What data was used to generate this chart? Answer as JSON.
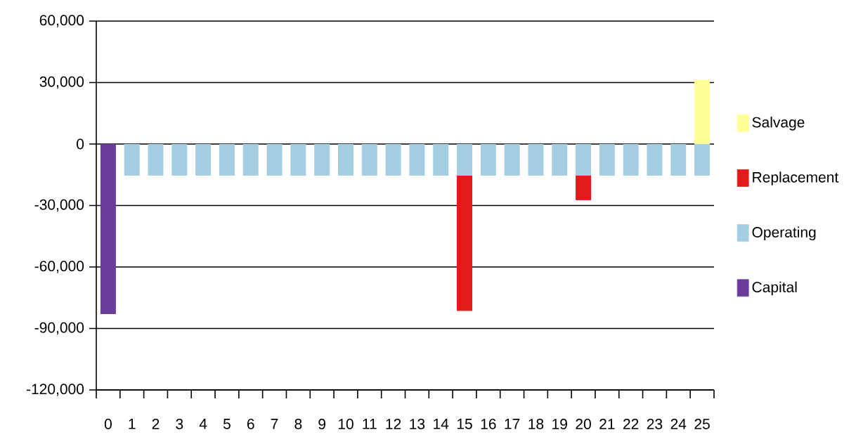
{
  "chart_data": {
    "type": "bar",
    "stacked": true,
    "categories": [
      "0",
      "1",
      "2",
      "3",
      "4",
      "5",
      "6",
      "7",
      "8",
      "9",
      "10",
      "11",
      "12",
      "13",
      "14",
      "15",
      "16",
      "17",
      "18",
      "19",
      "20",
      "21",
      "22",
      "23",
      "24",
      "25"
    ],
    "series": [
      {
        "name": "Capital",
        "color": "#6a3d9a",
        "values": [
          -83000,
          null,
          null,
          null,
          null,
          null,
          null,
          null,
          null,
          null,
          null,
          null,
          null,
          null,
          null,
          null,
          null,
          null,
          null,
          null,
          null,
          null,
          null,
          null,
          null,
          null
        ]
      },
      {
        "name": "Operating",
        "color": "#a6cee3",
        "values": [
          null,
          -15400,
          -15400,
          -15400,
          -15400,
          -15400,
          -15400,
          -15400,
          -15400,
          -15400,
          -15400,
          -15400,
          -15400,
          -15400,
          -15400,
          -15400,
          -15400,
          -15400,
          -15400,
          -15400,
          -15400,
          -15400,
          -15400,
          -15400,
          -15400,
          -15400
        ]
      },
      {
        "name": "Replacement",
        "color": "#e31a1c",
        "values": [
          null,
          null,
          null,
          null,
          null,
          null,
          null,
          null,
          null,
          null,
          null,
          null,
          null,
          null,
          null,
          -66000,
          null,
          null,
          null,
          null,
          -12000,
          null,
          null,
          null,
          null,
          null
        ]
      },
      {
        "name": "Salvage",
        "color": "#ffff99",
        "values": [
          null,
          null,
          null,
          null,
          null,
          null,
          null,
          null,
          null,
          null,
          null,
          null,
          null,
          null,
          null,
          null,
          null,
          null,
          null,
          null,
          null,
          null,
          null,
          null,
          null,
          31400
        ]
      }
    ],
    "ylim": [
      -120000,
      60000
    ],
    "yticks": [
      {
        "value": -120000,
        "label": "-120,000"
      },
      {
        "value": -90000,
        "label": "-90,000"
      },
      {
        "value": -60000,
        "label": "-60,000"
      },
      {
        "value": -30000,
        "label": "-30,000"
      },
      {
        "value": 0,
        "label": "0"
      },
      {
        "value": 30000,
        "label": "30,000"
      },
      {
        "value": 60000,
        "label": "60,000"
      }
    ],
    "grid": "y",
    "legend": "right"
  }
}
